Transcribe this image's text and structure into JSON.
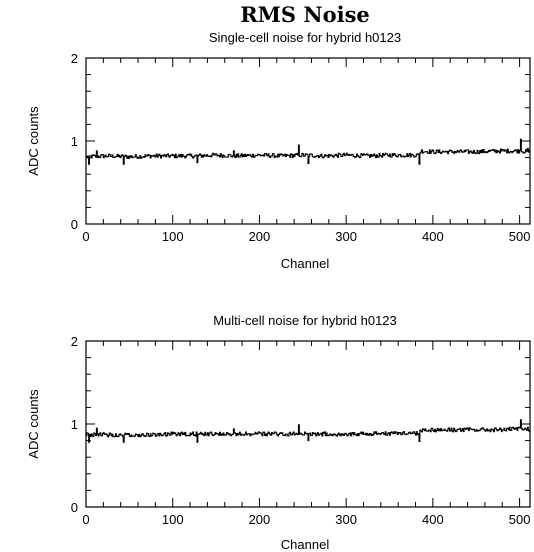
{
  "title": "RMS Noise",
  "chart_data": [
    {
      "type": "line",
      "title": "Single-cell noise for hybrid h0123",
      "xlabel": "Channel",
      "ylabel": "ADC counts",
      "xlim": [
        0,
        512
      ],
      "ylim": [
        0,
        2
      ],
      "x_ticks": [
        0,
        100,
        200,
        300,
        400,
        500
      ],
      "y_ticks": [
        0,
        1,
        2
      ],
      "grid": false,
      "series": [
        {
          "x": [
            0,
            25,
            50,
            75,
            100,
            125,
            150,
            175,
            200,
            225,
            250,
            275,
            300,
            325,
            350,
            375,
            385,
            386,
            400,
            425,
            450,
            475,
            500,
            512
          ],
          "values": [
            0.81,
            0.82,
            0.81,
            0.82,
            0.82,
            0.82,
            0.83,
            0.82,
            0.83,
            0.82,
            0.83,
            0.82,
            0.83,
            0.82,
            0.83,
            0.83,
            0.83,
            0.88,
            0.87,
            0.87,
            0.87,
            0.88,
            0.88,
            0.87
          ]
        }
      ],
      "spikes": [
        {
          "x": 3,
          "value": 0.72
        },
        {
          "x": 12,
          "value": 0.88
        },
        {
          "x": 43,
          "value": 0.72
        },
        {
          "x": 128,
          "value": 0.74
        },
        {
          "x": 170,
          "value": 0.88
        },
        {
          "x": 245,
          "value": 0.95
        },
        {
          "x": 256,
          "value": 0.73
        },
        {
          "x": 384,
          "value": 0.72
        },
        {
          "x": 501,
          "value": 1.02
        },
        {
          "x": 509,
          "value": 0.91
        }
      ]
    },
    {
      "type": "line",
      "title": "Multi-cell noise for hybrid h0123",
      "xlabel": "Channel",
      "ylabel": "ADC counts",
      "xlim": [
        0,
        512
      ],
      "ylim": [
        0,
        2
      ],
      "x_ticks": [
        0,
        100,
        200,
        300,
        400,
        500
      ],
      "y_ticks": [
        0,
        1,
        2
      ],
      "grid": false,
      "series": [
        {
          "x": [
            0,
            25,
            50,
            75,
            100,
            125,
            150,
            175,
            200,
            225,
            250,
            275,
            300,
            325,
            350,
            375,
            385,
            386,
            400,
            425,
            450,
            475,
            500,
            512
          ],
          "values": [
            0.87,
            0.87,
            0.87,
            0.87,
            0.88,
            0.88,
            0.88,
            0.88,
            0.88,
            0.88,
            0.88,
            0.88,
            0.88,
            0.88,
            0.89,
            0.89,
            0.89,
            0.93,
            0.93,
            0.93,
            0.93,
            0.93,
            0.94,
            0.93
          ]
        }
      ],
      "spikes": [
        {
          "x": 3,
          "value": 0.78
        },
        {
          "x": 12,
          "value": 0.95
        },
        {
          "x": 43,
          "value": 0.78
        },
        {
          "x": 128,
          "value": 0.78
        },
        {
          "x": 170,
          "value": 0.94
        },
        {
          "x": 245,
          "value": 0.99
        },
        {
          "x": 256,
          "value": 0.8
        },
        {
          "x": 384,
          "value": 0.79
        },
        {
          "x": 501,
          "value": 1.05
        },
        {
          "x": 509,
          "value": 0.96
        }
      ]
    }
  ]
}
